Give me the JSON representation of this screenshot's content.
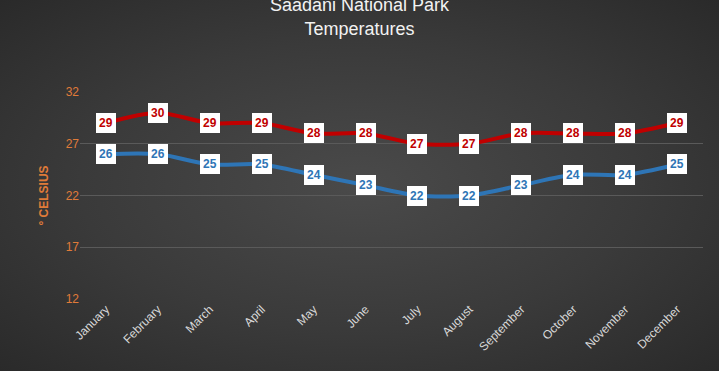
{
  "chart_data": {
    "type": "line",
    "title": "Saadani National Park\nTemperatures",
    "y_label": "° CELSIUS",
    "categories": [
      "January",
      "February",
      "March",
      "April",
      "May",
      "June",
      "July",
      "August",
      "September",
      "October",
      "November",
      "December"
    ],
    "series": [
      {
        "color": "#c00000",
        "values": [
          29,
          30,
          29,
          29,
          28,
          28,
          27,
          27,
          28,
          28,
          28,
          29
        ]
      },
      {
        "color": "#2e75b6",
        "values": [
          26,
          26,
          25,
          25,
          24,
          23,
          22,
          22,
          23,
          24,
          24,
          25
        ]
      }
    ],
    "ylim": [
      12,
      32
    ],
    "yticks": [
      12,
      17,
      22,
      27,
      32
    ],
    "grid": true,
    "data_labels": true,
    "line_style": "smooth",
    "marker": "none"
  }
}
